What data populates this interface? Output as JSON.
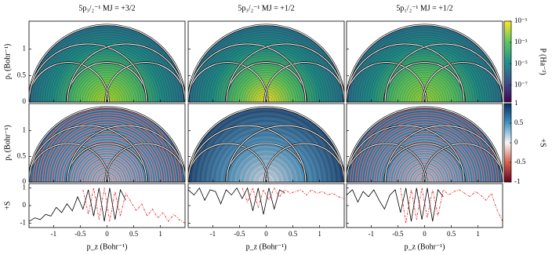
{
  "chart_data": {
    "type": "figure",
    "probability": {
      "y_label": "pₓ (Bohr⁻¹)",
      "ylim": [
        0,
        1.53
      ],
      "yticks": [
        0,
        0.5,
        1
      ],
      "colorbar": {
        "label": "P (Ha⁻²)",
        "scale": "log",
        "clim": [
          2.5e-09,
          0.1
        ],
        "colormap": "viridis",
        "ticks": [
          {
            "value": 0.1,
            "label": "10⁻¹"
          },
          {
            "value": 0.001,
            "label": "10⁻³"
          },
          {
            "value": 1e-05,
            "label": "10⁻⁵"
          },
          {
            "value": 1e-07,
            "label": "10⁻⁷"
          }
        ]
      }
    },
    "spin": {
      "y_label": "pₓ (Bohr⁻¹)",
      "ylim": [
        0,
        1.53
      ],
      "yticks": [
        0,
        0.5,
        1
      ],
      "colorbar": {
        "label": "+S",
        "scale": "linear",
        "clim": [
          -1,
          1
        ],
        "colormap": "RdBu",
        "ticks": [
          1,
          0.5,
          0,
          -0.5,
          -1
        ]
      }
    },
    "line": {
      "y_label": "+S",
      "ylim": [
        -1.25,
        1.25
      ],
      "yticks": [
        -1,
        0,
        1
      ]
    },
    "columns": [
      {
        "title": "5p₃/₂⁻¹ MJ = +3/2",
        "x_label": "p_z (Bohr⁻¹)",
        "xlim": [
          -1.46,
          1.46
        ],
        "xticks": [
          -1,
          -0.5,
          0,
          0.5,
          1
        ],
        "series": [
          {
            "color": "#000000",
            "linestyle": "solid",
            "x": [
              -1.46,
              -1.35,
              -1.25,
              -1.15,
              -1.05,
              -0.95,
              -0.85,
              -0.75,
              -0.65,
              -0.55,
              -0.45,
              -0.35,
              -0.25,
              -0.15,
              -0.05,
              0.05,
              0.15,
              0.25,
              0.35
            ],
            "values": [
              -0.9,
              -0.7,
              -0.8,
              -0.5,
              -0.6,
              -0.1,
              -0.4,
              0.1,
              -0.3,
              0.5,
              -0.2,
              0.9,
              -0.6,
              1.0,
              -0.9,
              1.0,
              -0.8,
              0.9,
              0.3
            ]
          },
          {
            "color": "#e41a1c",
            "linestyle": "dashed",
            "x": [
              -0.45,
              -0.35,
              -0.25,
              -0.15,
              -0.05,
              0.05,
              0.15,
              0.25,
              0.35,
              0.45,
              0.55,
              0.65,
              0.75,
              0.85,
              0.95,
              1.05,
              1.15,
              1.25,
              1.35,
              1.46
            ],
            "values": [
              0.9,
              -0.5,
              1.0,
              -0.8,
              1.0,
              -0.9,
              0.8,
              -0.6,
              0.7,
              0.2,
              -0.3,
              0.1,
              -0.6,
              -0.2,
              -0.7,
              -0.4,
              -0.9,
              -0.5,
              -0.8,
              -1.0
            ]
          }
        ]
      },
      {
        "title": "5p₃/₂⁻¹ MJ = +1/2",
        "x_label": "p_z (Bohr⁻¹)",
        "xlim": [
          -1.46,
          1.46
        ],
        "xticks": [
          -1,
          -0.5,
          0,
          0.5,
          1
        ],
        "series": [
          {
            "color": "#000000",
            "linestyle": "solid",
            "x": [
              -1.46,
              -1.35,
              -1.25,
              -1.15,
              -1.05,
              -0.95,
              -0.85,
              -0.75,
              -0.65,
              -0.55,
              -0.45,
              -0.35,
              -0.25,
              -0.15,
              -0.05,
              0.05,
              0.15,
              0.25,
              0.35
            ],
            "values": [
              0.9,
              0.6,
              1.0,
              0.3,
              0.9,
              0.8,
              0.1,
              0.9,
              0.6,
              1.0,
              0.4,
              1.0,
              -0.3,
              1.0,
              -0.5,
              1.0,
              -0.2,
              0.9,
              0.7
            ]
          },
          {
            "color": "#e41a1c",
            "linestyle": "dashed",
            "x": [
              -0.45,
              -0.35,
              -0.25,
              -0.15,
              -0.05,
              0.05,
              0.15,
              0.25,
              0.35,
              0.45,
              0.55,
              0.65,
              0.75,
              0.85,
              0.95,
              1.05,
              1.15,
              1.25,
              1.35,
              1.46
            ],
            "values": [
              1.0,
              0.2,
              1.0,
              -0.1,
              0.9,
              0.3,
              1.0,
              0.5,
              0.9,
              0.7,
              0.8,
              0.9,
              0.6,
              0.9,
              0.7,
              0.8,
              0.6,
              0.7,
              0.5,
              0.4
            ]
          }
        ]
      },
      {
        "title": "5p₁/₂⁻¹ MJ = +1/2",
        "x_label": "p_z (Bohr⁻¹)",
        "xlim": [
          -1.46,
          1.46
        ],
        "xticks": [
          -1,
          -0.5,
          0,
          0.5,
          1
        ],
        "series": [
          {
            "color": "#000000",
            "linestyle": "solid",
            "x": [
              -1.46,
              -1.35,
              -1.25,
              -1.15,
              -1.05,
              -0.95,
              -0.85,
              -0.75,
              -0.65,
              -0.55,
              -0.45,
              -0.35,
              -0.25,
              -0.15,
              -0.05,
              0.05,
              0.15,
              0.25,
              0.35
            ],
            "values": [
              0.6,
              0.9,
              0.2,
              0.8,
              0.5,
              0.9,
              0.3,
              -0.2,
              0.6,
              0.9,
              -0.4,
              1.0,
              -0.9,
              1.0,
              -0.8,
              1.0,
              -0.9,
              0.9,
              0.5
            ]
          },
          {
            "color": "#e41a1c",
            "linestyle": "dashed",
            "x": [
              -0.45,
              -0.35,
              -0.25,
              -0.15,
              -0.05,
              0.05,
              0.15,
              0.25,
              0.35,
              0.45,
              0.55,
              0.65,
              0.75,
              0.85,
              0.95,
              1.05,
              1.15,
              1.25,
              1.35,
              1.46
            ],
            "values": [
              1.0,
              -1.0,
              0.9,
              -0.8,
              1.0,
              -0.7,
              0.9,
              -0.6,
              0.9,
              0.6,
              0.8,
              0.9,
              0.7,
              0.5,
              0.8,
              0.6,
              0.3,
              0.7,
              -0.2,
              -0.9
            ]
          }
        ]
      }
    ]
  }
}
